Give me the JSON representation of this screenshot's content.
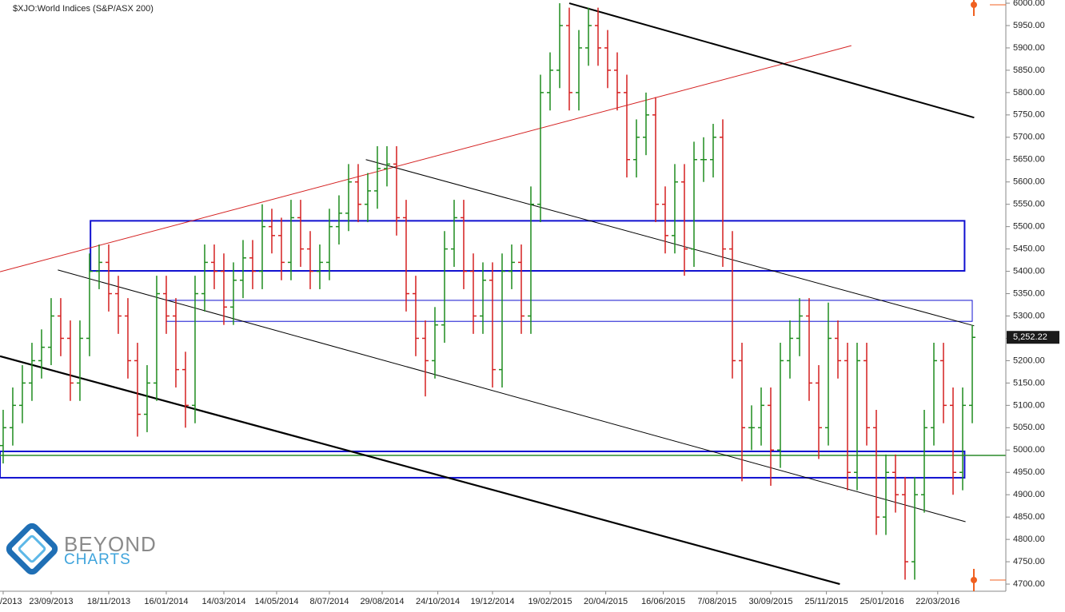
{
  "chart_data": {
    "type": "ohlc",
    "title": "$XJO:World Indices (S&P/ASX 200)",
    "brand": [
      "BEYOND",
      "CHARTS"
    ],
    "up_color": "#1e8c1e",
    "down_color": "#d42020",
    "xlim": [
      -0.33,
      104.5
    ],
    "ylim": [
      4684,
      6007.2
    ],
    "xticks": [
      {
        "value": 0,
        "label": "/2013"
      },
      {
        "value": 5,
        "label": "23/09/2013"
      },
      {
        "value": 11,
        "label": "18/11/2013"
      },
      {
        "value": 17,
        "label": "16/01/2014"
      },
      {
        "value": 23,
        "label": "14/03/2014"
      },
      {
        "value": 28.5,
        "label": "14/05/2014"
      },
      {
        "value": 34,
        "label": "8/07/2014"
      },
      {
        "value": 39.5,
        "label": "29/08/2014"
      },
      {
        "value": 45.3,
        "label": "24/10/2014"
      },
      {
        "value": 51,
        "label": "19/12/2014"
      },
      {
        "value": 57,
        "label": "19/02/2015"
      },
      {
        "value": 62.8,
        "label": "20/04/2015"
      },
      {
        "value": 68.8,
        "label": "16/06/2015"
      },
      {
        "value": 74.4,
        "label": "7/08/2015"
      },
      {
        "value": 80,
        "label": "30/09/2015"
      },
      {
        "value": 85.8,
        "label": "25/11/2015"
      },
      {
        "value": 91.6,
        "label": "25/01/2016"
      },
      {
        "value": 97.4,
        "label": "22/03/2016"
      }
    ],
    "yticks": [
      {
        "value": 4700,
        "label": "4700.00"
      },
      {
        "value": 4750,
        "label": "4750.00"
      },
      {
        "value": 4800,
        "label": "4800.00"
      },
      {
        "value": 4850,
        "label": "4850.00"
      },
      {
        "value": 4900,
        "label": "4900.00"
      },
      {
        "value": 4950,
        "label": "4950.00"
      },
      {
        "value": 5000,
        "label": "5000.00"
      },
      {
        "value": 5050,
        "label": "5050.00"
      },
      {
        "value": 5100,
        "label": "5100.00"
      },
      {
        "value": 5150,
        "label": "5150.00"
      },
      {
        "value": 5200,
        "label": "5200.00"
      },
      {
        "value": 5250,
        "label": "5250.00"
      },
      {
        "value": 5300,
        "label": "5300.00"
      },
      {
        "value": 5350,
        "label": "5350.00"
      },
      {
        "value": 5400,
        "label": "5400.00"
      },
      {
        "value": 5450,
        "label": "5450.00"
      },
      {
        "value": 5500,
        "label": "5500.00"
      },
      {
        "value": 5550,
        "label": "5550.00"
      },
      {
        "value": 5600,
        "label": "5600.00"
      },
      {
        "value": 5650,
        "label": "5650.00"
      },
      {
        "value": 5700,
        "label": "5700.00"
      },
      {
        "value": 5750,
        "label": "5750.00"
      },
      {
        "value": 5800,
        "label": "5800.00"
      },
      {
        "value": 5850,
        "label": "5850.00"
      },
      {
        "value": 5900,
        "label": "5900.00"
      },
      {
        "value": 5950,
        "label": "5950.00"
      },
      {
        "value": 6000,
        "label": "6000.00"
      }
    ],
    "open": [
      5010,
      5050,
      5100,
      5150,
      5200,
      5230,
      5300,
      5250,
      5150,
      5250,
      5400,
      5420,
      5350,
      5300,
      5200,
      5080,
      5150,
      5350,
      5300,
      5180,
      5100,
      5350,
      5420,
      5400,
      5320,
      5380,
      5430,
      5400,
      5500,
      5480,
      5420,
      5520,
      5450,
      5400,
      5420,
      5500,
      5530,
      5600,
      5550,
      5580,
      5630,
      5640,
      5520,
      5350,
      5250,
      5200,
      5280,
      5450,
      5520,
      5400,
      5300,
      5380,
      5180,
      5400,
      5420,
      5300,
      5550,
      5800,
      5850,
      5950,
      5800,
      5900,
      5950,
      5900,
      5850,
      5800,
      5650,
      5700,
      5750,
      5550,
      5480,
      5600,
      5450,
      5650,
      5650,
      5700,
      5450,
      5200,
      5050,
      5050,
      5100,
      5000,
      5200,
      5250,
      5300,
      5150,
      5050,
      5250,
      5200,
      4950,
      5200,
      5050,
      4850,
      4950,
      4900,
      4750,
      4900,
      5050,
      5200,
      5100,
      4950,
      5100
    ],
    "high": [
      5090,
      5140,
      5190,
      5240,
      5270,
      5340,
      5340,
      5290,
      5290,
      5440,
      5460,
      5460,
      5390,
      5340,
      5240,
      5190,
      5390,
      5390,
      5340,
      5220,
      5390,
      5460,
      5460,
      5440,
      5420,
      5470,
      5470,
      5550,
      5540,
      5520,
      5560,
      5560,
      5490,
      5460,
      5540,
      5570,
      5640,
      5640,
      5620,
      5680,
      5680,
      5680,
      5560,
      5390,
      5290,
      5320,
      5490,
      5560,
      5560,
      5440,
      5420,
      5420,
      5440,
      5460,
      5460,
      5590,
      5840,
      5890,
      6000,
      5990,
      5940,
      5990,
      5990,
      5940,
      5890,
      5840,
      5740,
      5800,
      5790,
      5590,
      5640,
      5640,
      5690,
      5700,
      5730,
      5740,
      5490,
      5240,
      5100,
      5140,
      5140,
      5240,
      5290,
      5340,
      5340,
      5190,
      5330,
      5290,
      5240,
      5240,
      5240,
      5090,
      4990,
      4990,
      4940,
      4940,
      5090,
      5240,
      5240,
      5140,
      5140,
      5280
    ],
    "low": [
      4970,
      5010,
      5060,
      5110,
      5160,
      5190,
      5210,
      5110,
      5110,
      5210,
      5360,
      5310,
      5260,
      5160,
      5030,
      5040,
      5110,
      5260,
      5140,
      5050,
      5060,
      5310,
      5360,
      5280,
      5280,
      5340,
      5360,
      5360,
      5440,
      5380,
      5380,
      5410,
      5360,
      5360,
      5380,
      5460,
      5490,
      5510,
      5510,
      5540,
      5590,
      5480,
      5310,
      5210,
      5120,
      5160,
      5240,
      5410,
      5360,
      5260,
      5260,
      5140,
      5140,
      5360,
      5260,
      5260,
      5510,
      5760,
      5810,
      5760,
      5760,
      5860,
      5860,
      5810,
      5760,
      5610,
      5610,
      5660,
      5510,
      5440,
      5440,
      5390,
      5410,
      5600,
      5610,
      5410,
      5160,
      4930,
      5000,
      5010,
      4920,
      4960,
      5160,
      5210,
      5110,
      4980,
      5010,
      5160,
      4910,
      4910,
      5010,
      4810,
      4810,
      4860,
      4710,
      4710,
      4860,
      5010,
      5060,
      4900,
      4910,
      5060
    ],
    "close": [
      5050,
      5100,
      5150,
      5200,
      5230,
      5300,
      5250,
      5150,
      5250,
      5400,
      5420,
      5350,
      5300,
      5200,
      5080,
      5150,
      5350,
      5300,
      5180,
      5100,
      5350,
      5420,
      5400,
      5320,
      5380,
      5430,
      5400,
      5500,
      5480,
      5420,
      5520,
      5450,
      5400,
      5420,
      5500,
      5530,
      5600,
      5550,
      5580,
      5630,
      5640,
      5520,
      5350,
      5250,
      5200,
      5280,
      5450,
      5520,
      5400,
      5300,
      5380,
      5180,
      5400,
      5420,
      5300,
      5550,
      5800,
      5850,
      5950,
      5800,
      5900,
      5950,
      5900,
      5850,
      5800,
      5650,
      5700,
      5750,
      5550,
      5480,
      5600,
      5450,
      5650,
      5650,
      5700,
      5450,
      5200,
      5050,
      5050,
      5100,
      5000,
      5200,
      5250,
      5300,
      5150,
      5050,
      5250,
      5200,
      4950,
      5200,
      5050,
      4850,
      4950,
      4900,
      4750,
      4900,
      5050,
      5200,
      5100,
      4950,
      5100,
      5252.22
    ],
    "last_price": {
      "value": 5252.22,
      "label": "5,252.22"
    },
    "trend_lines": [
      {
        "color": "#d42020",
        "width": 1,
        "x": [
          -0.33,
          88.4
        ],
        "y": [
          5399,
          5905
        ]
      },
      {
        "color": "#000000",
        "width": 2,
        "x": [
          59,
          101.2
        ],
        "y": [
          6000,
          5744
        ]
      },
      {
        "color": "#000000",
        "width": 1,
        "x": [
          37.8,
          101.2
        ],
        "y": [
          5650,
          5278
        ]
      },
      {
        "color": "#000000",
        "width": 1,
        "x": [
          5.7,
          100.3
        ],
        "y": [
          5403,
          4839.5
        ]
      },
      {
        "color": "#000000",
        "width": 2.2,
        "x": [
          -0.33,
          87.2
        ],
        "y": [
          5210,
          4700
        ]
      }
    ],
    "zones": [
      {
        "color": "#1010d0",
        "x": [
          9.1,
          100.2
        ],
        "y": [
          5401,
          5513
        ]
      },
      {
        "color": "#1010d0",
        "x": [
          17,
          101
        ],
        "y": [
          5288,
          5335
        ]
      },
      {
        "color": "#1010d0",
        "x": [
          -0.33,
          100.2
        ],
        "y": [
          4938,
          4997
        ]
      }
    ],
    "hline": {
      "value": 4988,
      "color": "#2a8a2a"
    }
  }
}
